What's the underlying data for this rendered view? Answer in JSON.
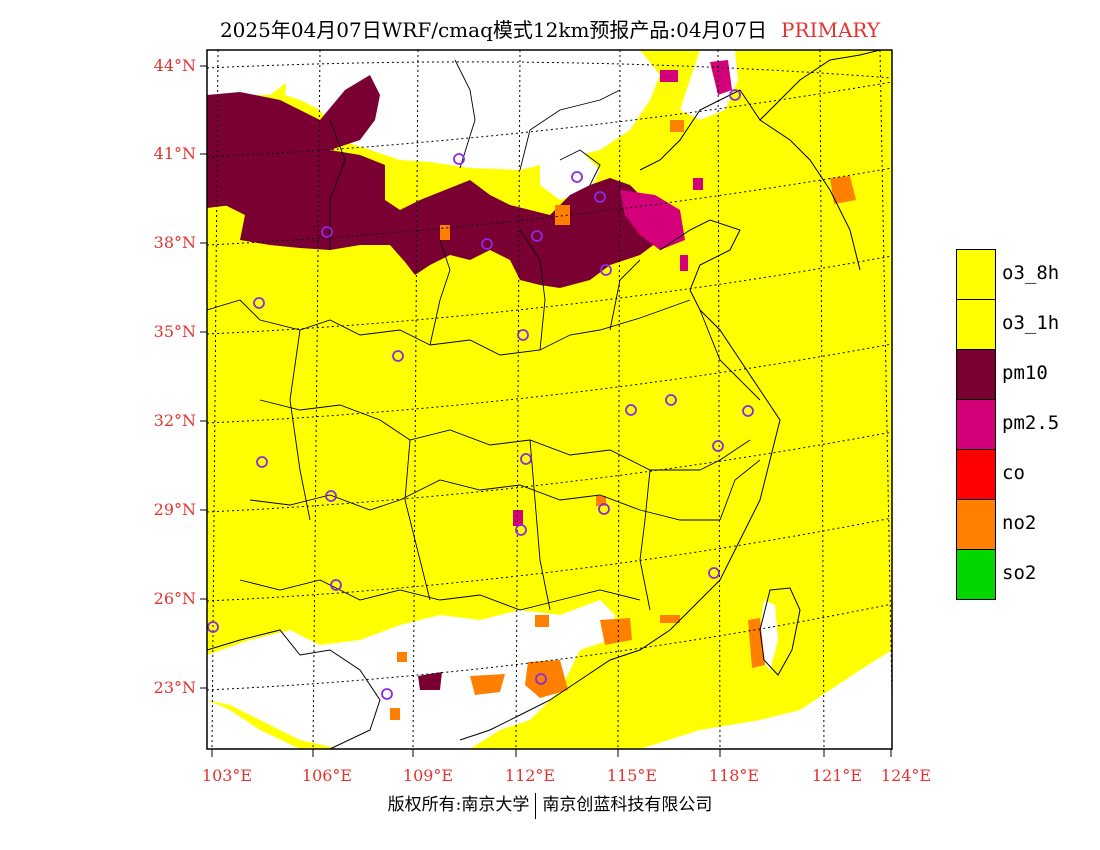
{
  "title": {
    "text": "2025年04月07日WRF/cmaq模式12km预报产品:04月07日",
    "tag": "PRIMARY"
  },
  "copyright": {
    "left": "版权所有:南京大学",
    "right": "南京创蓝科技有限公司"
  },
  "lat_labels": [
    "44°N",
    "41°N",
    "38°N",
    "35°N",
    "32°N",
    "29°N",
    "26°N",
    "23°N"
  ],
  "lon_labels": [
    "103°E",
    "106°E",
    "109°E",
    "112°E",
    "115°E",
    "118°E",
    "121°E",
    "124°E"
  ],
  "legend": [
    {
      "label": "o3_8h",
      "color": "#ffff00"
    },
    {
      "label": "o3_1h",
      "color": "#ffff00"
    },
    {
      "label": "pm10",
      "color": "#7a0033"
    },
    {
      "label": "pm2.5",
      "color": "#d4007a"
    },
    {
      "label": "co",
      "color": "#ff0000"
    },
    {
      "label": "no2",
      "color": "#ff7f00"
    },
    {
      "label": "so2",
      "color": "#00d800"
    }
  ],
  "colors": {
    "o3": "#ffff00",
    "pm10": "#7a0033",
    "pm25": "#d4007a",
    "no2": "#ff7f00",
    "nodata": "#ffffff",
    "city_marker": "#8a2be2"
  }
}
